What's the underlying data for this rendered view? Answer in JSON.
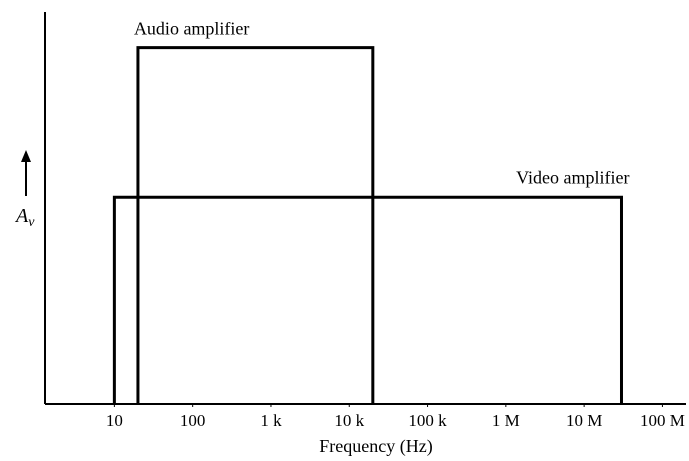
{
  "chart_data": {
    "type": "line",
    "x_scale": "log",
    "xlabel": "Frequency (Hz)",
    "ylabel": "A",
    "ylabel_subscript": "v",
    "x_ticks": [
      {
        "value": 10,
        "label": "10"
      },
      {
        "value": 100,
        "label": "100"
      },
      {
        "value": 1000,
        "label": "1 k"
      },
      {
        "value": 10000,
        "label": "10 k"
      },
      {
        "value": 100000,
        "label": "100 k"
      },
      {
        "value": 1000000,
        "label": "1 M"
      },
      {
        "value": 10000000,
        "label": "10 M"
      },
      {
        "value": 100000000,
        "label": "100 M"
      }
    ],
    "xlim": [
      1.3,
      200000000
    ],
    "ylim": [
      0,
      1.1
    ],
    "series": [
      {
        "name": "Audio amplifier",
        "f_low": 20,
        "f_high": 20000,
        "gain": 1.0
      },
      {
        "name": "Video amplifier",
        "f_low": 10,
        "f_high": 30000000,
        "gain": 0.58
      }
    ],
    "grid": false
  }
}
